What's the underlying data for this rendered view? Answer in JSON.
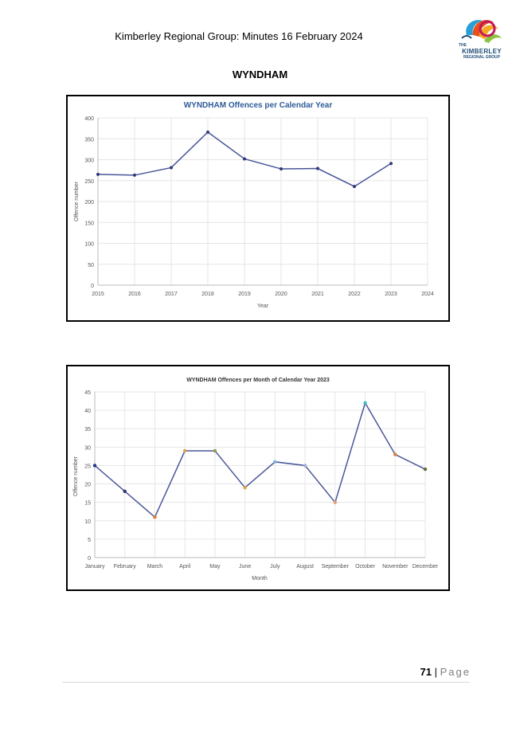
{
  "header": {
    "title": "Kimberley Regional Group: Minutes 16 February 2024",
    "logo_icon": "kimberley-logo-icon",
    "logo_text_small": "THE",
    "logo_text_main": "KIMBERLEY",
    "logo_text_sub": "REGIONAL GROUP"
  },
  "section": {
    "title": "WYNDHAM"
  },
  "chart_data": [
    {
      "type": "line",
      "title": "WYNDHAM Offences per Calendar Year",
      "xlabel": "Year",
      "ylabel": "Offence number",
      "x": [
        2015,
        2016,
        2017,
        2018,
        2019,
        2020,
        2021,
        2022,
        2023
      ],
      "xticks": [
        "2015",
        "2016",
        "2017",
        "2018",
        "2019",
        "2020",
        "2021",
        "2022",
        "2023",
        "2024"
      ],
      "xlim": [
        2015,
        2024
      ],
      "values": [
        265,
        263,
        281,
        366,
        302,
        278,
        279,
        236,
        291
      ],
      "ylim": [
        0,
        400
      ],
      "yticks": [
        0,
        50,
        100,
        150,
        200,
        250,
        300,
        350,
        400
      ],
      "grid": true,
      "line_color": "#4a5599",
      "point_color": "#2e3a7a"
    },
    {
      "type": "line",
      "title": "WYNDHAM Offences per Month of Calendar Year 2023",
      "xlabel": "Month",
      "ylabel": "Offence number",
      "categories": [
        "January",
        "February",
        "March",
        "April",
        "May",
        "June",
        "July",
        "August",
        "September",
        "October",
        "November",
        "December"
      ],
      "values": [
        25,
        18,
        11,
        29,
        29,
        19,
        26,
        25,
        15,
        42,
        28,
        24
      ],
      "ylim": [
        0,
        45
      ],
      "yticks": [
        0,
        5,
        10,
        15,
        20,
        25,
        30,
        35,
        40,
        45
      ],
      "grid": true,
      "line_color": "#4a5599",
      "point_colors": [
        "#1f3a8a",
        "#2e3a6a",
        "#e07b39",
        "#e0a040",
        "#8aa050",
        "#e0a040",
        "#7fb0e0",
        "#a0b0d0",
        "#e0a070",
        "#40c0c0",
        "#e07b39",
        "#607040"
      ]
    }
  ],
  "footer": {
    "page_number": "71",
    "separator": " | ",
    "page_word": "Page"
  }
}
